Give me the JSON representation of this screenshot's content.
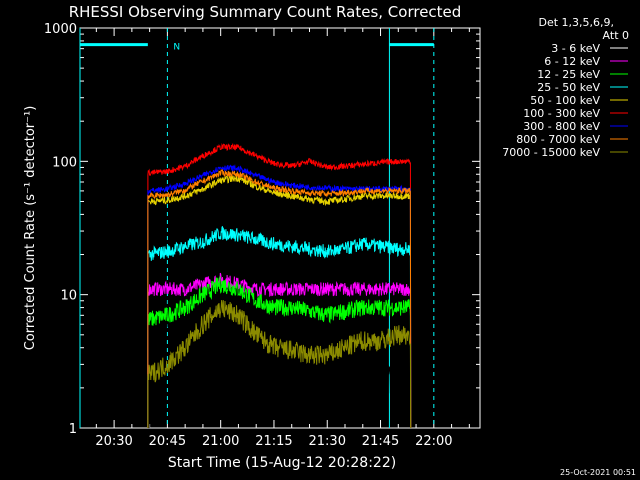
{
  "chart_data": {
    "type": "line",
    "title": "RHESSI Observing Summary Count Rates, Corrected",
    "xlabel": "Start Time (15-Aug-12 20:28:22)",
    "ylabel": "Corrected Count Rate (s⁻¹ detector⁻¹)",
    "yscale": "log",
    "ylim": [
      1,
      1000
    ],
    "xlim_minutes": [
      20.4,
      96.7
    ],
    "xtick_labels": [
      {
        "label": "20:30",
        "minute": 30
      },
      {
        "label": "20:45",
        "minute": 45
      },
      {
        "label": "21:00",
        "minute": 60
      },
      {
        "label": "21:15",
        "minute": 75
      },
      {
        "label": "21:30",
        "minute": 90
      },
      {
        "label": "21:45",
        "minute": 105
      },
      {
        "label": "22:00",
        "minute": 120
      }
    ],
    "ytick_labels": [
      {
        "label": "1",
        "value": 1
      },
      {
        "label": "10",
        "value": 10
      },
      {
        "label": "100",
        "value": 100
      },
      {
        "label": "1000",
        "value": 1000
      }
    ],
    "data_start_minute": 39.5,
    "data_end_minute": 113.5,
    "x": [
      40,
      45,
      50,
      55,
      60,
      65,
      70,
      75,
      80,
      85,
      90,
      95,
      100,
      105,
      110,
      113
    ],
    "series": [
      {
        "name": "3 - 6 keV",
        "color": "#000000",
        "values": [
          1.2,
          7,
          9,
          8,
          6,
          5,
          3.5,
          2.5,
          2.5,
          2,
          1.8,
          2.2,
          2.5,
          2.5,
          2.5,
          2.5
        ]
      },
      {
        "name": "6 - 12 keV",
        "color": "#ff00ff",
        "values": [
          11,
          11,
          11,
          12,
          13,
          12,
          11,
          11,
          11,
          11,
          11,
          11,
          11,
          11,
          11,
          11
        ]
      },
      {
        "name": "12 - 25 keV",
        "color": "#00ff00",
        "values": [
          6.5,
          7,
          8,
          10,
          12,
          11,
          9,
          8,
          8,
          7.5,
          7,
          7.5,
          8,
          8,
          8,
          8
        ]
      },
      {
        "name": "25 - 50 keV",
        "color": "#00ffff",
        "values": [
          20,
          21,
          23,
          25,
          29,
          28,
          26,
          24,
          23,
          22,
          21,
          22,
          24,
          23,
          22,
          22
        ]
      },
      {
        "name": "50 - 100 keV",
        "color": "#e6d200",
        "values": [
          50,
          51,
          55,
          62,
          72,
          75,
          65,
          58,
          55,
          52,
          50,
          52,
          55,
          55,
          55,
          55
        ]
      },
      {
        "name": "100 - 300 keV",
        "color": "#ff0000",
        "values": [
          82,
          84,
          92,
          110,
          128,
          127,
          110,
          96,
          92,
          100,
          90,
          92,
          95,
          98,
          100,
          100
        ]
      },
      {
        "name": "300 - 800 keV",
        "color": "#0000ff",
        "values": [
          60,
          62,
          68,
          78,
          90,
          88,
          78,
          70,
          66,
          64,
          63,
          62,
          62,
          62,
          62,
          62
        ]
      },
      {
        "name": "800 - 7000 keV",
        "color": "#ff8000",
        "values": [
          55,
          56,
          61,
          71,
          82,
          80,
          70,
          63,
          60,
          58,
          57,
          58,
          60,
          60,
          60,
          60
        ]
      },
      {
        "name": "7000 - 15000 keV",
        "color": "#8b8b00",
        "values": [
          2.5,
          3,
          4,
          6,
          8,
          7,
          5,
          4,
          3.8,
          3.5,
          3.5,
          4,
          4.5,
          4.5,
          5,
          5
        ]
      }
    ],
    "annotations": {
      "night_bars": [
        {
          "start_minute": 20.4,
          "end_minute": 39.5
        },
        {
          "start_minute": 107.5,
          "end_minute": 120
        }
      ],
      "saa_marker": "N",
      "saa_marker_minute": 45,
      "vertical_marks_minutes": [
        20.4,
        45,
        107.5,
        120
      ]
    },
    "legend": {
      "placement": "right",
      "header": [
        "Det 1,3,5,6,9,",
        "Att 0"
      ],
      "entries": [
        {
          "label": "3 - 6 keV",
          "color": "#ffffff"
        },
        {
          "label": "6 - 12 keV",
          "color": "#ff00ff"
        },
        {
          "label": "12 - 25 keV",
          "color": "#00ff00"
        },
        {
          "label": "25 - 50 keV",
          "color": "#00ffff"
        },
        {
          "label": "50 - 100 keV",
          "color": "#e6d200"
        },
        {
          "label": "100 - 300 keV",
          "color": "#ff0000"
        },
        {
          "label": "300 - 800 keV",
          "color": "#0000ff"
        },
        {
          "label": "800 - 7000 keV",
          "color": "#ff8000"
        },
        {
          "label": "7000 - 15000 keV",
          "color": "#8b8b00"
        }
      ]
    },
    "footer_timestamp": "25-Oct-2021 00:51"
  }
}
